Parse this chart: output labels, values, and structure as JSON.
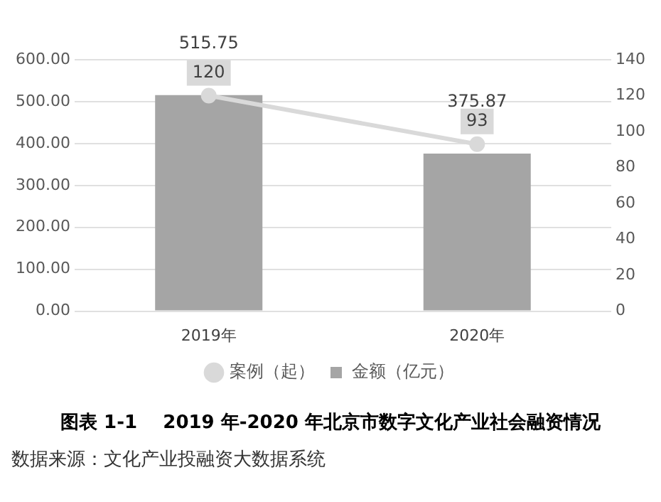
{
  "chart_data": {
    "type": "bar",
    "title": "图表 1-1    2019 年-2020 年北京市数字文化产业社会融资情况",
    "annotations": [
      "数据来源：文化产业投融资大数据系统"
    ],
    "categories": [
      "2019年",
      "2020年"
    ],
    "series": [
      {
        "name": "金额（亿元）",
        "color": "#a5a5a5",
        "values": [
          515.75,
          375.87
        ]
      },
      {
        "name": "案例（起）",
        "type": "line",
        "axis": "y2",
        "color": "#d9d9d9",
        "values": [
          120,
          93
        ]
      }
    ],
    "ylim": [
      0,
      600
    ],
    "yticks": [
      {
        "value": 0,
        "label": "0.00"
      },
      {
        "value": 100,
        "label": "100.00"
      },
      {
        "value": 200,
        "label": "200.00"
      },
      {
        "value": 300,
        "label": "300.00"
      },
      {
        "value": 400,
        "label": "400.00"
      },
      {
        "value": 500,
        "label": "500.00"
      },
      {
        "value": 600,
        "label": "600.00"
      }
    ],
    "y2lim": [
      0,
      140
    ],
    "y2ticks": [
      0,
      20,
      40,
      60,
      80,
      100,
      120,
      140
    ],
    "grid": "y",
    "legend": "bottom",
    "data_labels": true,
    "marker": "circle",
    "line_style": "solid"
  }
}
